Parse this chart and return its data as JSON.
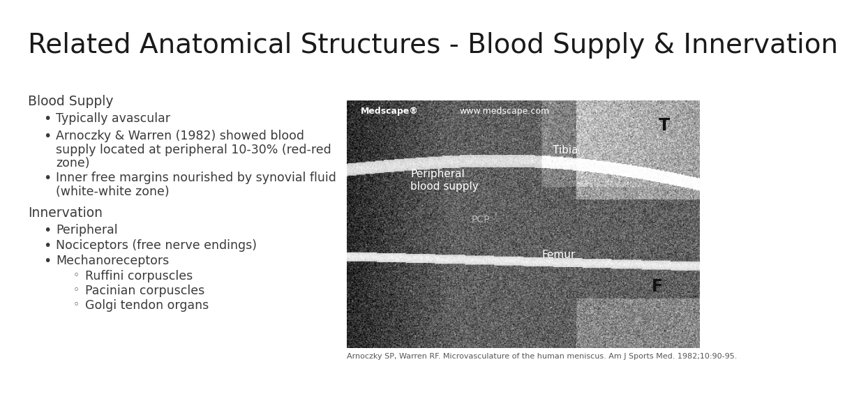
{
  "title": "Related Anatomical Structures - Blood Supply & Innervation",
  "title_fontsize": 28,
  "title_color": "#1a1a1a",
  "bg_color": "#ffffff",
  "text_color": "#3a3a3a",
  "section1_header": "Blood Supply",
  "section1_bullets": [
    "Typically avascular",
    "Arnoczky & Warren (1982) showed blood\n    supply located at peripheral 10-30% (red-red\n    zone)",
    "Inner free margins nourished by synovial fluid\n    (white-white zone)"
  ],
  "section2_header": "Innervation",
  "section2_bullets": [
    "Peripheral",
    "Nociceptors (free nerve endings)",
    "Mechanoreceptors"
  ],
  "section2_sub_bullets": [
    "Ruffini corpuscles",
    "Pacinian corpuscles",
    "Golgi tendon organs"
  ],
  "bullet_fontsize": 12.5,
  "header_fontsize": 13.5,
  "caption": "Arnoczky SP, Warren RF. Microvasculature of the human meniscus. Am J Sports Med. 1982;10:90-95.",
  "caption_fontsize": 8,
  "medscape_bar_color": "#aa0000"
}
